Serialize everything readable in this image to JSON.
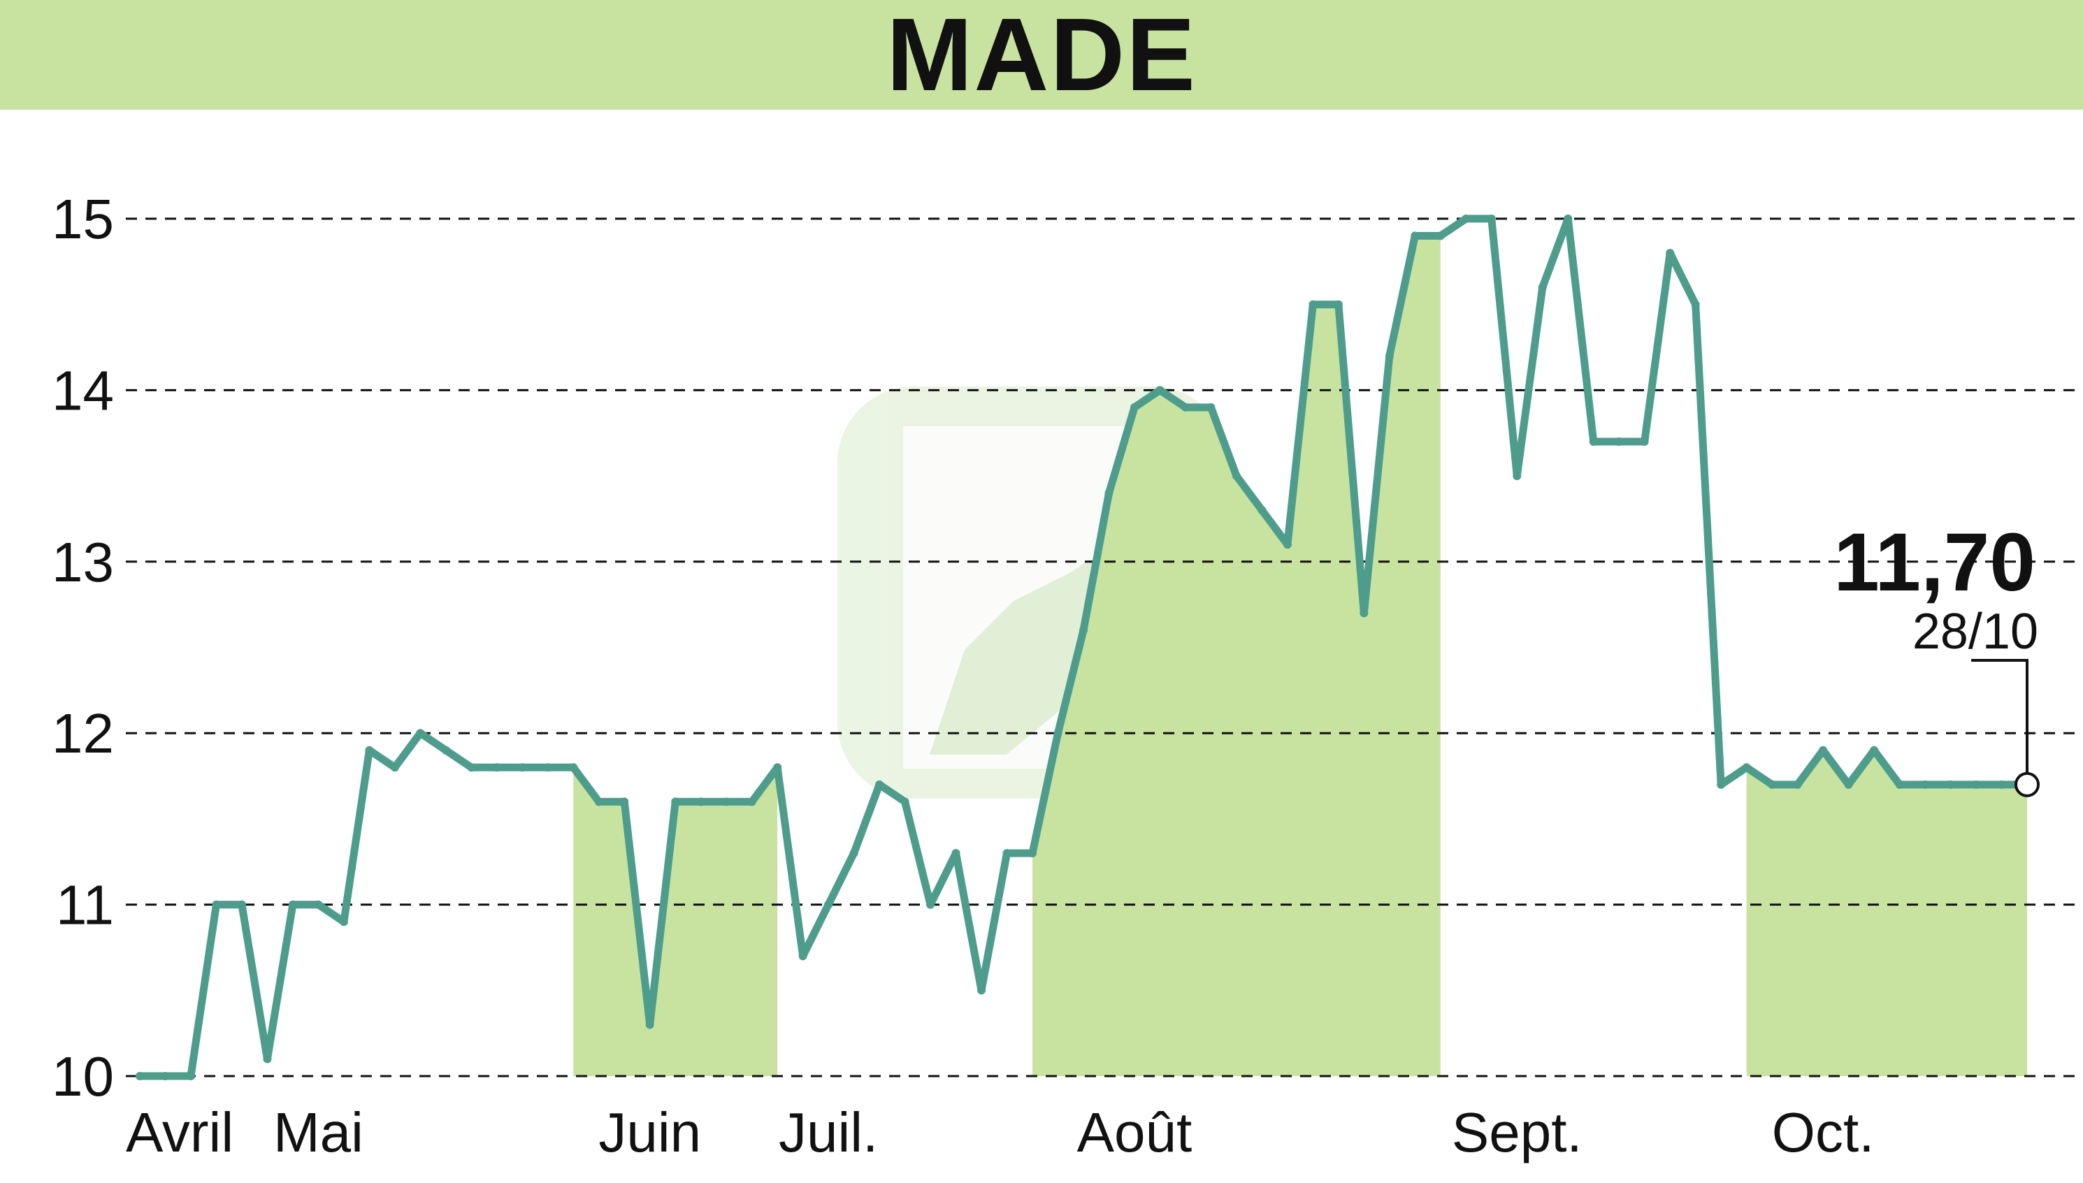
{
  "chart_data": {
    "type": "line",
    "title": "MADE",
    "xlabel": "",
    "ylabel": "",
    "ylim": [
      10,
      15
    ],
    "yticks": [
      10,
      11,
      12,
      13,
      14,
      15
    ],
    "grid": true,
    "grid_style": "dashed-horizontal",
    "months": [
      "Avril",
      "Mai",
      "Juin",
      "Juil.",
      "Août",
      "Sept.",
      "Oct."
    ],
    "colors": {
      "line": "#4e9d8c",
      "shade": "#c8e3a0",
      "title_bar": "#c8e3a0"
    },
    "last_value_label": "11,70",
    "last_date_label": "28/10",
    "series": [
      {
        "values": [
          10.0,
          10.0,
          10.0,
          11.0,
          11.0,
          10.1,
          11.0,
          11.0,
          10.9,
          11.9,
          11.8,
          12.0,
          11.9,
          11.8,
          11.8,
          11.8,
          11.8,
          11.8,
          11.6,
          11.6,
          10.3,
          11.6,
          11.6,
          11.6,
          11.6,
          11.8,
          10.7,
          11.0,
          11.3,
          11.7,
          11.6,
          11.0,
          11.3,
          10.5,
          11.3,
          11.3,
          12.0,
          12.6,
          13.4,
          13.9,
          14.0,
          13.9,
          13.9,
          13.5,
          13.3,
          13.1,
          14.5,
          14.5,
          12.7,
          14.2,
          14.9,
          14.9,
          15.0,
          15.0,
          13.5,
          14.6,
          15.0,
          13.7,
          13.7,
          13.7,
          14.8,
          14.5,
          11.7,
          11.8,
          11.7,
          11.7,
          11.9,
          11.7,
          11.9,
          11.7,
          11.7,
          11.7,
          11.7,
          11.7,
          11.7
        ]
      }
    ]
  }
}
